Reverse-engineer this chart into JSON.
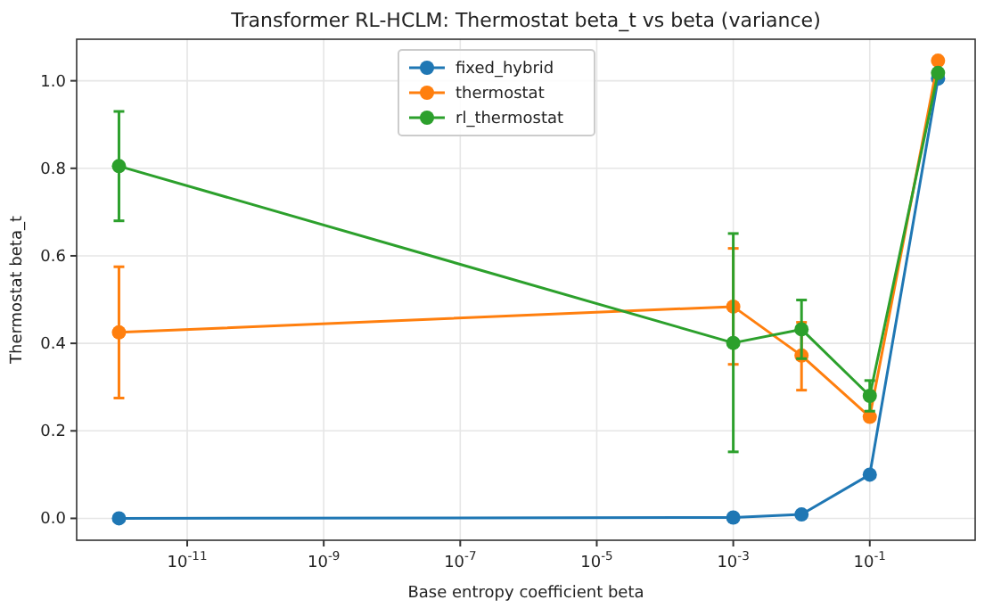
{
  "chart_data": {
    "type": "line",
    "title": "Transformer RL-HCLM: Thermostat beta_t vs beta (variance)",
    "xlabel": "Base entropy coefficient beta",
    "ylabel": "Thermostat beta_t",
    "log": "x",
    "x": [
      1e-12,
      0.001,
      0.01,
      0.1,
      1
    ],
    "xlim": [
      2.4e-13,
      3.5
    ],
    "xticks": [
      {
        "value": 1e-11,
        "label": "10$^{-11}$"
      },
      {
        "value": 1e-09,
        "label": "10$^{-9}$"
      },
      {
        "value": 1e-07,
        "label": "10$^{-7}$"
      },
      {
        "value": 1e-05,
        "label": "10$^{-5}$"
      },
      {
        "value": 0.001,
        "label": "10$^{-3}$"
      },
      {
        "value": 0.1,
        "label": "10$^{-1}$"
      }
    ],
    "ylim": [
      -0.05,
      1.095
    ],
    "yticks": [
      {
        "value": 0,
        "label": "0.0"
      },
      {
        "value": 0.2,
        "label": "0.2"
      },
      {
        "value": 0.4,
        "label": "0.4"
      },
      {
        "value": 0.6,
        "label": "0.6"
      },
      {
        "value": 0.8,
        "label": "0.8"
      },
      {
        "value": 1,
        "label": "1.0"
      }
    ],
    "grid": true,
    "legend": "top",
    "marker": "circle",
    "line_style": "solid",
    "series": [
      {
        "name": "fixed_hybrid",
        "color": "#1f77b4",
        "values": [
          0,
          0.002,
          0.009,
          0.1,
          1.005
        ]
      },
      {
        "name": "thermostat",
        "color": "#ff7f0e",
        "values": [
          0.425,
          0.484,
          0.372,
          0.232,
          1.046
        ],
        "errors": [
          [
            0.275,
            0.575
          ],
          [
            0.352,
            0.617
          ],
          [
            0.293,
            0.448
          ],
          null,
          null
        ]
      },
      {
        "name": "rl_thermostat",
        "color": "#2ca02c",
        "values": [
          0.805,
          0.401,
          0.432,
          0.28,
          1.018
        ],
        "errors": [
          [
            0.68,
            0.93
          ],
          [
            0.152,
            0.651
          ],
          [
            0.365,
            0.499
          ],
          [
            0.245,
            0.315
          ],
          null
        ]
      }
    ]
  }
}
